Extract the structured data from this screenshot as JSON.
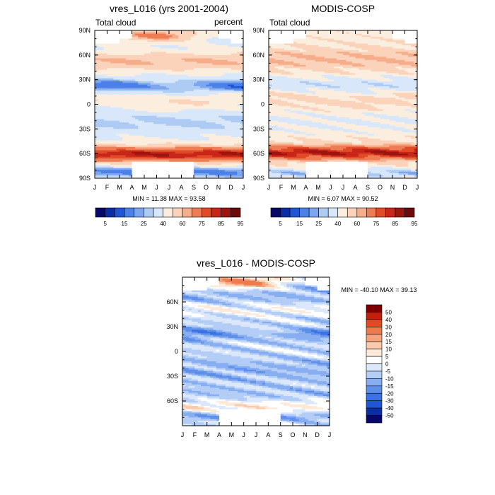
{
  "chart_data": [
    {
      "type": "heatmap",
      "id": "p1",
      "title": "vres_L016 (yrs 2001-2004)",
      "left_label": "Total cloud",
      "right_label": "percent",
      "x_tick_labels": [
        "J",
        "F",
        "M",
        "A",
        "M",
        "J",
        "J",
        "A",
        "S",
        "O",
        "N",
        "D",
        "J"
      ],
      "y_tick_labels": [
        "90N",
        "60N",
        "30N",
        "0",
        "30S",
        "60S",
        "90S"
      ],
      "y_tick_values": [
        90,
        60,
        30,
        0,
        -30,
        -60,
        -90
      ],
      "ylim": [
        -90,
        90
      ],
      "xlim": [
        0,
        12
      ],
      "stats": "MIN =  11.38 MAX =  93.58",
      "min": 11.38,
      "max": 93.58,
      "colorbar_labels": [
        "5",
        "15",
        "25",
        "40",
        "60",
        "75",
        "85",
        "95"
      ]
    },
    {
      "type": "heatmap",
      "id": "p2",
      "title": "MODIS-COSP",
      "left_label": "Total cloud",
      "right_label": "",
      "x_tick_labels": [
        "J",
        "F",
        "M",
        "A",
        "M",
        "J",
        "J",
        "A",
        "S",
        "O",
        "N",
        "D",
        "J"
      ],
      "y_tick_labels": [
        "90N",
        "60N",
        "30N",
        "0",
        "30S",
        "60S",
        "90S"
      ],
      "y_tick_values": [
        90,
        60,
        30,
        0,
        -30,
        -60,
        -90
      ],
      "ylim": [
        -90,
        90
      ],
      "xlim": [
        0,
        12
      ],
      "stats": "MIN =   6.07 MAX =  90.52",
      "min": 6.07,
      "max": 90.52,
      "colorbar_labels": [
        "5",
        "15",
        "25",
        "40",
        "60",
        "75",
        "85",
        "95"
      ]
    },
    {
      "type": "heatmap",
      "id": "diff",
      "title": "vres_L016 - MODIS-COSP",
      "x_tick_labels": [
        "J",
        "F",
        "M",
        "A",
        "M",
        "J",
        "J",
        "A",
        "S",
        "O",
        "N",
        "D",
        "J"
      ],
      "y_tick_labels": [
        "60N",
        "30N",
        "0",
        "30S",
        "60S"
      ],
      "y_tick_values": [
        60,
        30,
        0,
        -30,
        -60
      ],
      "ylim": [
        -90,
        90
      ],
      "xlim": [
        0,
        12
      ],
      "stats": "MIN = -40.10 MAX =  39.13",
      "min": -40.1,
      "max": 39.13,
      "colorbar_labels": [
        "50",
        "40",
        "30",
        "20",
        "15",
        "10",
        "5",
        "0",
        "-5",
        "-10",
        "-15",
        "-20",
        "-30",
        "-40",
        "-50"
      ]
    }
  ],
  "palettes": {
    "abs": [
      "#08086b",
      "#0b2ea6",
      "#1f56d6",
      "#4a80e8",
      "#7da6ee",
      "#aecbf4",
      "#d8e7fa",
      "#fbeede",
      "#fbd3bb",
      "#f6ad8a",
      "#ee7d55",
      "#e24b27",
      "#c9261a",
      "#9e1510",
      "#6e0a0a"
    ],
    "diff": [
      "#08086b",
      "#0b2ea6",
      "#1f56d6",
      "#3b72e3",
      "#5e90ea",
      "#87aef0",
      "#b3cdf6",
      "#dbe8fb",
      "#ffffff",
      "#fde9d8",
      "#fbc9ab",
      "#f5a37c",
      "#ee7a4d",
      "#e14a22",
      "#c0210d",
      "#7d0000"
    ]
  }
}
